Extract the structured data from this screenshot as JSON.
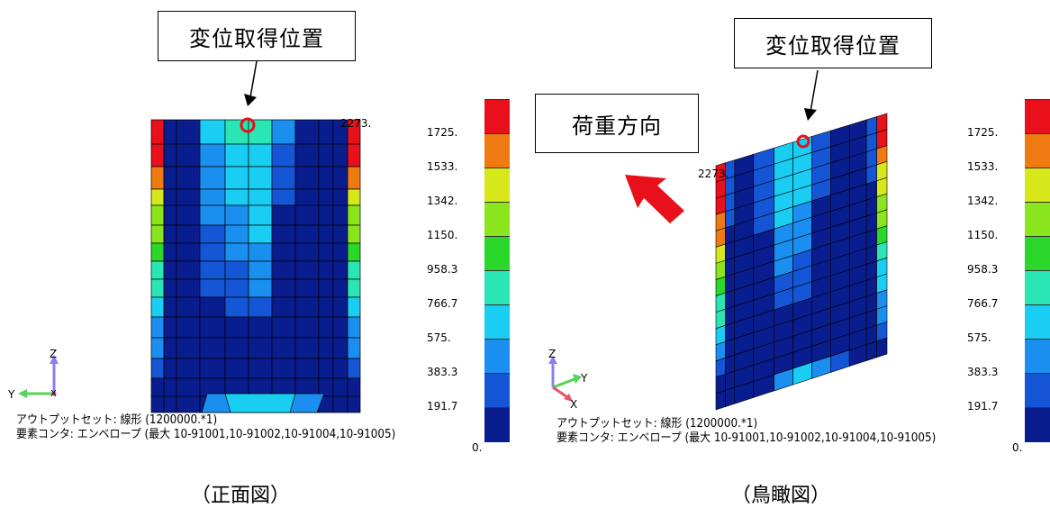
{
  "front": {
    "callout": "変位取得位置",
    "max_label": "2273.",
    "info_line1": "アウトプットセット: 線形 (1200000.*1)",
    "info_line2": "要素コンタ: エンベロープ (最大 10-91001,10-91002,10-91004,10-91005)",
    "caption": "（正面図）",
    "axes": {
      "up": "Z",
      "left": "Y",
      "back": "X"
    }
  },
  "bird": {
    "callout": "変位取得位置",
    "load_label": "荷重方向",
    "max_label": "2273.",
    "info_line1": "アウトプットセット: 線形 (1200000.*1)",
    "info_line2": "要素コンタ: エンベロープ (最大 10-91001,10-91002,10-91004,10-91005)",
    "caption": "（鳥瞰図）",
    "axes": {
      "up": "Z",
      "right": "Y",
      "down": "X"
    }
  },
  "scale": {
    "ticks": [
      "1725.",
      "1533.",
      "1342.",
      "1150.",
      "958.3",
      "766.7",
      "575.",
      "383.3",
      "191.7",
      "0."
    ],
    "colors": [
      "#e8101a",
      "#f07a12",
      "#d7e81a",
      "#8ae51c",
      "#2ad72b",
      "#2ae6b4",
      "#1acdf2",
      "#1a8ff0",
      "#1456d6",
      "#0a1d8f"
    ]
  },
  "colors": {
    "arrow": "#e8101a",
    "marker": "#e8101a",
    "axis_z": "#8a7ff0",
    "axis_y": "#55d455",
    "axis_x": "#e8506a"
  }
}
